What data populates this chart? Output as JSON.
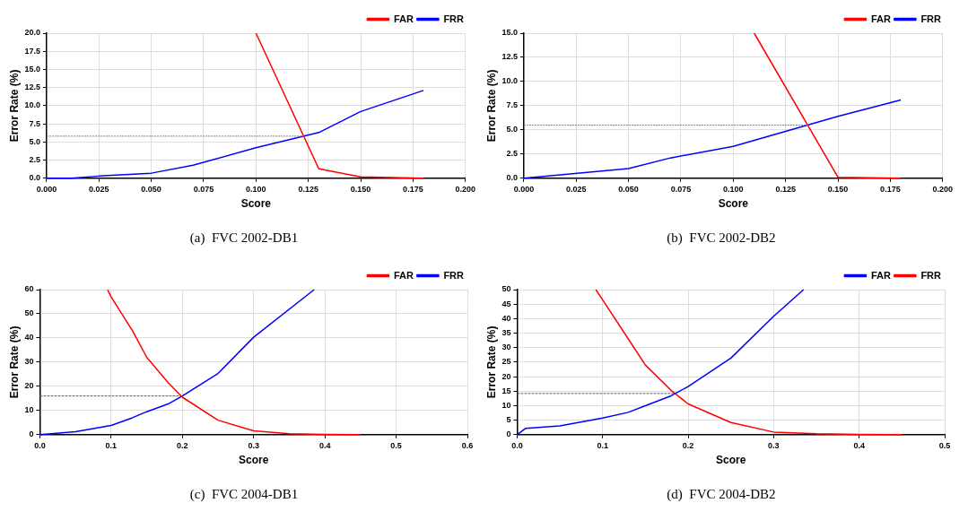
{
  "chart_data": [
    {
      "type": "line",
      "xlabel": "Score",
      "ylabel": "Error Rate (%)",
      "xlim": [
        0,
        0.2
      ],
      "ylim": [
        0,
        20
      ],
      "xticks": [
        {
          "value": 0,
          "label": "0.000"
        },
        {
          "value": 0.025,
          "label": "0.025"
        },
        {
          "value": 0.05,
          "label": "0.050"
        },
        {
          "value": 0.075,
          "label": "0.075"
        },
        {
          "value": 0.1,
          "label": "0.100"
        },
        {
          "value": 0.125,
          "label": "0.125"
        },
        {
          "value": 0.15,
          "label": "0.150"
        },
        {
          "value": 0.175,
          "label": "0.175"
        },
        {
          "value": 0.2,
          "label": "0.200"
        }
      ],
      "yticks": [
        {
          "value": 0,
          "label": "0.0"
        },
        2.5,
        {
          "value": 5,
          "label": "5.0"
        },
        7.5,
        {
          "value": 10,
          "label": "10.0"
        },
        12.5,
        {
          "value": 15,
          "label": "15.0"
        },
        17.5,
        {
          "value": 20,
          "label": "20.0"
        }
      ],
      "grid": true,
      "legend": "top right",
      "marker": "none",
      "series": [
        {
          "name": "FAR",
          "color": "#ff0000",
          "x": [
            0.1,
            0.13,
            0.15,
            0.18
          ],
          "values": [
            20,
            1.3,
            0.2,
            0
          ]
        },
        {
          "name": "FRR",
          "color": "#0000ff",
          "x": [
            0,
            0.012,
            0.025,
            0.05,
            0.07,
            0.1,
            0.13,
            0.15,
            0.18
          ],
          "values": [
            0,
            0,
            0.3,
            0.7,
            1.8,
            4.2,
            6.3,
            9.2,
            12.1
          ]
        },
        {
          "color": "#808080",
          "line_style": "dotted",
          "x": [
            0,
            0.123
          ],
          "values": [
            5.8,
            5.8
          ]
        }
      ],
      "annotations": [
        "(a)  FVC 2002-DB1"
      ]
    },
    {
      "type": "line",
      "xlabel": "Score",
      "ylabel": "Error Rate (%)",
      "xlim": [
        0,
        0.2
      ],
      "ylim": [
        0,
        15
      ],
      "xticks": [
        {
          "value": 0,
          "label": "0.000"
        },
        {
          "value": 0.025,
          "label": "0.025"
        },
        {
          "value": 0.05,
          "label": "0.050"
        },
        {
          "value": 0.075,
          "label": "0.075"
        },
        {
          "value": 0.1,
          "label": "0.100"
        },
        {
          "value": 0.125,
          "label": "0.125"
        },
        {
          "value": 0.15,
          "label": "0.150"
        },
        {
          "value": 0.175,
          "label": "0.175"
        },
        {
          "value": 0.2,
          "label": "0.200"
        }
      ],
      "yticks": [
        {
          "value": 0,
          "label": "0.0"
        },
        2.5,
        {
          "value": 5,
          "label": "5.0"
        },
        7.5,
        {
          "value": 10,
          "label": "10.0"
        },
        12.5,
        {
          "value": 15,
          "label": "15.0"
        }
      ],
      "grid": true,
      "legend": "top right",
      "marker": "none",
      "series": [
        {
          "name": "FAR",
          "color": "#ff0000",
          "x": [
            0.11,
            0.15,
            0.18
          ],
          "values": [
            15,
            0.1,
            0
          ]
        },
        {
          "name": "FRR",
          "color": "#0000ff",
          "x": [
            0,
            0.05,
            0.07,
            0.1,
            0.15,
            0.18
          ],
          "values": [
            0,
            1,
            2.1,
            3.3,
            6.4,
            8.1
          ]
        },
        {
          "color": "#808080",
          "line_style": "dotted",
          "x": [
            0,
            0.136
          ],
          "values": [
            5.5,
            5.5
          ]
        }
      ],
      "annotations": [
        "(b)  FVC 2002-DB2"
      ]
    },
    {
      "type": "line",
      "xlabel": "Score",
      "ylabel": "Error Rate (%)",
      "xlim": [
        0,
        0.6
      ],
      "ylim": [
        0,
        60
      ],
      "xticks": [
        {
          "value": 0,
          "label": "0.0"
        },
        0.1,
        0.2,
        0.3,
        0.4,
        0.5,
        0.6
      ],
      "yticks": [
        0,
        10,
        20,
        30,
        40,
        50,
        60
      ],
      "grid": true,
      "legend": "top right",
      "marker": "none",
      "series": [
        {
          "name": "FAR",
          "color": "#ff0000",
          "x": [
            0.095,
            0.1,
            0.13,
            0.15,
            0.18,
            0.2,
            0.25,
            0.3,
            0.35,
            0.4,
            0.45
          ],
          "values": [
            60,
            57,
            43,
            32,
            21.5,
            15.5,
            6,
            1.6,
            0.4,
            0.1,
            0
          ]
        },
        {
          "name": "FRR",
          "color": "#0000ff",
          "x": [
            0,
            0.05,
            0.1,
            0.13,
            0.15,
            0.18,
            0.2,
            0.25,
            0.3,
            0.385
          ],
          "values": [
            0,
            1.2,
            3.8,
            7,
            9.5,
            12.7,
            16,
            25.3,
            40.3,
            60
          ]
        },
        {
          "color": "#606060",
          "line_style": "dashed",
          "x": [
            0,
            0.2
          ],
          "values": [
            16,
            16
          ]
        }
      ],
      "annotations": [
        "(c)  FVC 2004-DB1"
      ]
    },
    {
      "type": "line",
      "xlabel": "Score",
      "ylabel": "Error Rate (%)",
      "xlim": [
        0,
        0.5
      ],
      "ylim": [
        0,
        50
      ],
      "xticks": [
        {
          "value": 0,
          "label": "0.0"
        },
        0.1,
        0.2,
        0.3,
        0.4,
        0.5
      ],
      "yticks": [
        0,
        5,
        10,
        15,
        20,
        25,
        30,
        35,
        40,
        45,
        50
      ],
      "grid": true,
      "legend": "top right",
      "marker": "none",
      "series": [
        {
          "name": "FAR",
          "color": "#0000ff",
          "x": [
            0,
            0.01,
            0.05,
            0.1,
            0.13,
            0.15,
            0.18,
            0.2,
            0.25,
            0.3,
            0.335
          ],
          "values": [
            0,
            2.2,
            3,
            5.7,
            7.7,
            10,
            13.4,
            16.6,
            26.4,
            40.8,
            50
          ]
        },
        {
          "name": "FRR",
          "color": "#ff0000",
          "x": [
            0.092,
            0.1,
            0.13,
            0.15,
            0.18,
            0.2,
            0.25,
            0.3,
            0.35,
            0.4,
            0.45
          ],
          "values": [
            50,
            46.5,
            33,
            24,
            15.3,
            10.6,
            4.2,
            0.9,
            0.3,
            0.1,
            0
          ]
        },
        {
          "color": "#606060",
          "line_style": "dashed",
          "x": [
            0,
            0.185
          ],
          "values": [
            14.2,
            14.2
          ]
        }
      ],
      "annotations": [
        "(d)  FVC 2004-DB2"
      ]
    }
  ]
}
